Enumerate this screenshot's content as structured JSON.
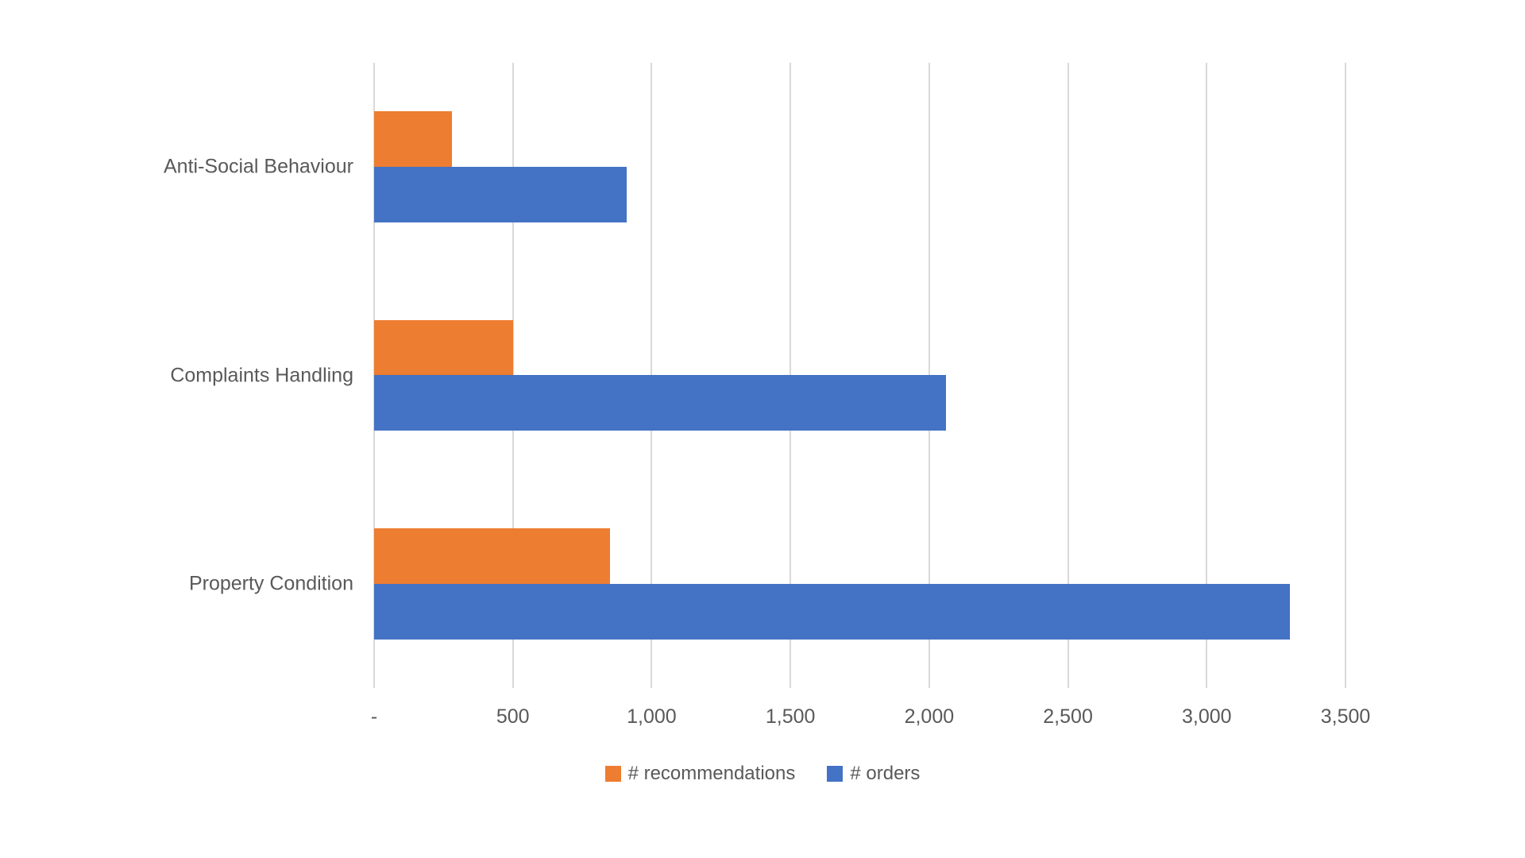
{
  "chart_data": {
    "type": "bar",
    "orientation": "horizontal",
    "title": "",
    "categories": [
      "Anti-Social Behaviour",
      "Complaints Handling",
      "Property Condition"
    ],
    "series": [
      {
        "name": "# recommendations",
        "color": "#ED7D31",
        "values": [
          280,
          500,
          850
        ]
      },
      {
        "name": "# orders",
        "color": "#4472C4",
        "values": [
          910,
          2060,
          3300
        ]
      }
    ],
    "xlabel": "",
    "ylabel": "",
    "xlim": [
      0,
      3500
    ],
    "xticks": [
      0,
      500,
      1000,
      1500,
      2000,
      2500,
      3000,
      3500
    ],
    "xticklabels": [
      "-",
      "500",
      "1,000",
      "1,500",
      "2,000",
      "2,500",
      "3,000",
      "3,500"
    ],
    "grid": "vertical-only",
    "legend_position": "bottom-center",
    "colors": {
      "gridline": "#D9D9D9",
      "text": "#595959",
      "background": "#FFFFFF"
    }
  }
}
